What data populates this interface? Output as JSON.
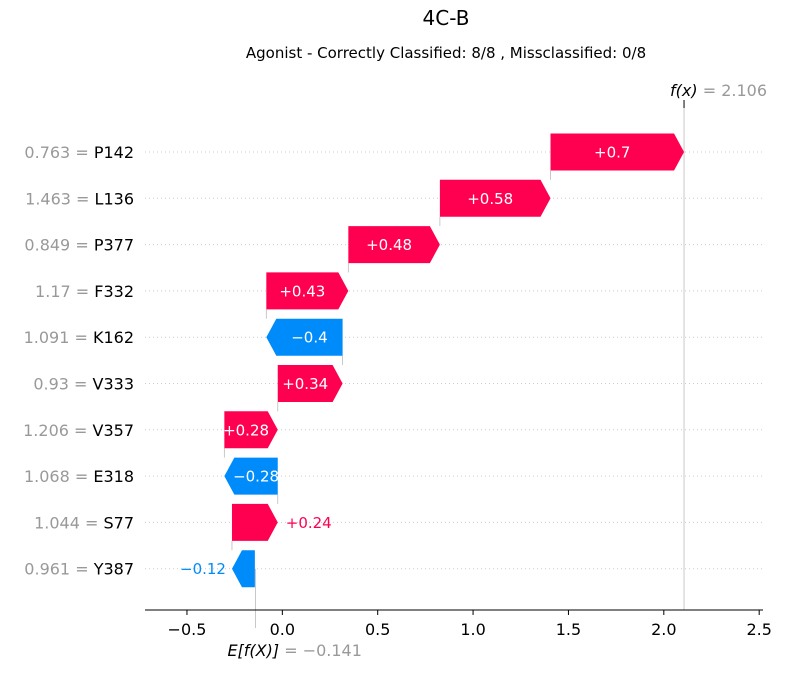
{
  "chart_data": {
    "type": "waterfall",
    "title": "4C-B",
    "subtitle": "Agonist - Correctly Classified: 8/8 , Missclassified: 0/8",
    "base_value": -0.141,
    "base_label": "E[f(X)]",
    "base_value_text": "= −0.141",
    "output_value": 2.106,
    "output_label": "f(x)",
    "output_value_text": "= 2.106",
    "xlim": [
      -0.72,
      2.52
    ],
    "xticks": [
      -0.5,
      0.0,
      0.5,
      1.0,
      1.5,
      2.0,
      2.5
    ],
    "xtick_labels": [
      "−0.5",
      "0.0",
      "0.5",
      "1.0",
      "1.5",
      "2.0",
      "2.5"
    ],
    "features": [
      {
        "value": "0.763",
        "name": "P142",
        "contribution": 0.7,
        "label": "+0.7"
      },
      {
        "value": "1.463",
        "name": "L136",
        "contribution": 0.58,
        "label": "+0.58"
      },
      {
        "value": "0.849",
        "name": "P377",
        "contribution": 0.48,
        "label": "+0.48"
      },
      {
        "value": "1.17",
        "name": "F332",
        "contribution": 0.43,
        "label": "+0.43"
      },
      {
        "value": "1.091",
        "name": "K162",
        "contribution": -0.4,
        "label": "−0.4"
      },
      {
        "value": "0.93",
        "name": "V333",
        "contribution": 0.34,
        "label": "+0.34"
      },
      {
        "value": "1.206",
        "name": "V357",
        "contribution": 0.28,
        "label": "+0.28"
      },
      {
        "value": "1.068",
        "name": "E318",
        "contribution": -0.28,
        "label": "−0.28"
      },
      {
        "value": "1.044",
        "name": "S77",
        "contribution": 0.24,
        "label": "+0.24"
      },
      {
        "value": "0.961",
        "name": "Y387",
        "contribution": -0.12,
        "label": "−0.12"
      }
    ],
    "colors": {
      "positive": "#ff0051",
      "negative": "#008bfb",
      "value_text": "#999999",
      "label_text": "#000000",
      "gridline": "#cccccc"
    }
  }
}
